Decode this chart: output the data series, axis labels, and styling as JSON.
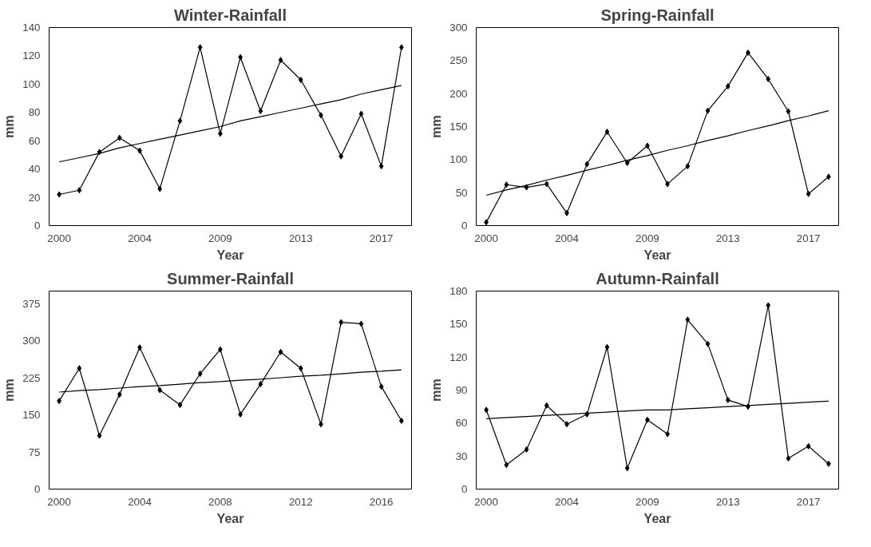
{
  "chart_data": [
    {
      "type": "line",
      "title": "Winter-Rainfall",
      "xlabel": "Year",
      "ylabel": "mm",
      "categories": [
        "2000",
        null,
        null,
        null,
        "2004",
        null,
        null,
        null,
        "2009",
        null,
        null,
        null,
        "2013",
        null,
        null,
        null,
        "2017",
        null
      ],
      "ylim": [
        0,
        140
      ],
      "yticks": [
        0,
        20,
        40,
        60,
        80,
        100,
        120,
        140
      ],
      "grid": false,
      "series": [
        {
          "color": "#000000",
          "marker": "diamond",
          "values": [
            22,
            25,
            52,
            62,
            53,
            26,
            74,
            126,
            65,
            119,
            81,
            117,
            103,
            78,
            49,
            79,
            42,
            126
          ]
        },
        {
          "color": "#000000",
          "marker": "none",
          "values": [
            45,
            48,
            51,
            55,
            58,
            61,
            64,
            67,
            70,
            74,
            77,
            80,
            83,
            86,
            89,
            93,
            96,
            99
          ]
        }
      ]
    },
    {
      "type": "line",
      "title": "Spring-Rainfall",
      "xlabel": "Year",
      "ylabel": "mm",
      "categories": [
        "2000",
        null,
        null,
        null,
        "2004",
        null,
        null,
        null,
        "2009",
        null,
        null,
        null,
        "2013",
        null,
        null,
        null,
        "2017",
        null
      ],
      "ylim": [
        0,
        300
      ],
      "yticks": [
        0,
        50,
        100,
        150,
        200,
        250,
        300
      ],
      "grid": false,
      "series": [
        {
          "color": "#000000",
          "marker": "diamond",
          "values": [
            5,
            62,
            58,
            63,
            19,
            93,
            142,
            95,
            121,
            63,
            90,
            174,
            211,
            262,
            222,
            173,
            48,
            74
          ]
        },
        {
          "color": "#000000",
          "marker": "none",
          "values": [
            46,
            54,
            61,
            69,
            76,
            84,
            91,
            99,
            106,
            114,
            121,
            129,
            136,
            144,
            151,
            159,
            166,
            174
          ]
        }
      ]
    },
    {
      "type": "line",
      "title": "Summer-Rainfall",
      "xlabel": "Year",
      "ylabel": "mm",
      "categories": [
        "2000",
        null,
        null,
        null,
        "2004",
        null,
        null,
        null,
        "2008",
        null,
        null,
        null,
        "2012",
        null,
        null,
        null,
        "2016",
        null
      ],
      "ylim": [
        0,
        400
      ],
      "yticks": [
        0,
        75,
        150,
        225,
        300,
        375
      ],
      "grid": false,
      "series": [
        {
          "color": "#000000",
          "marker": "diamond",
          "values": [
            178,
            244,
            108,
            191,
            286,
            200,
            170,
            233,
            282,
            151,
            212,
            277,
            244,
            131,
            337,
            334,
            207,
            138
          ]
        },
        {
          "color": "#000000",
          "marker": "none",
          "values": [
            196,
            199,
            201,
            204,
            207,
            209,
            212,
            215,
            217,
            220,
            222,
            225,
            228,
            230,
            233,
            236,
            238,
            241
          ]
        }
      ]
    },
    {
      "type": "line",
      "title": "Autumn-Rainfall",
      "xlabel": "Year",
      "ylabel": "mm",
      "categories": [
        "2000",
        null,
        null,
        null,
        "2004",
        null,
        null,
        null,
        "2009",
        null,
        null,
        null,
        "2013",
        null,
        null,
        null,
        "2017",
        null
      ],
      "ylim": [
        0,
        180
      ],
      "yticks": [
        0,
        30,
        60,
        90,
        120,
        150,
        180
      ],
      "grid": false,
      "series": [
        {
          "color": "#000000",
          "marker": "diamond",
          "values": [
            72,
            22,
            36,
            76,
            59,
            68,
            129,
            19,
            63,
            50,
            154,
            132,
            81,
            75,
            167,
            28,
            39,
            23
          ]
        },
        {
          "color": "#000000",
          "marker": "none",
          "values": [
            64,
            65,
            66,
            67,
            68,
            69,
            70,
            71,
            72,
            72,
            73,
            74,
            75,
            76,
            77,
            78,
            79,
            80
          ]
        }
      ]
    }
  ]
}
